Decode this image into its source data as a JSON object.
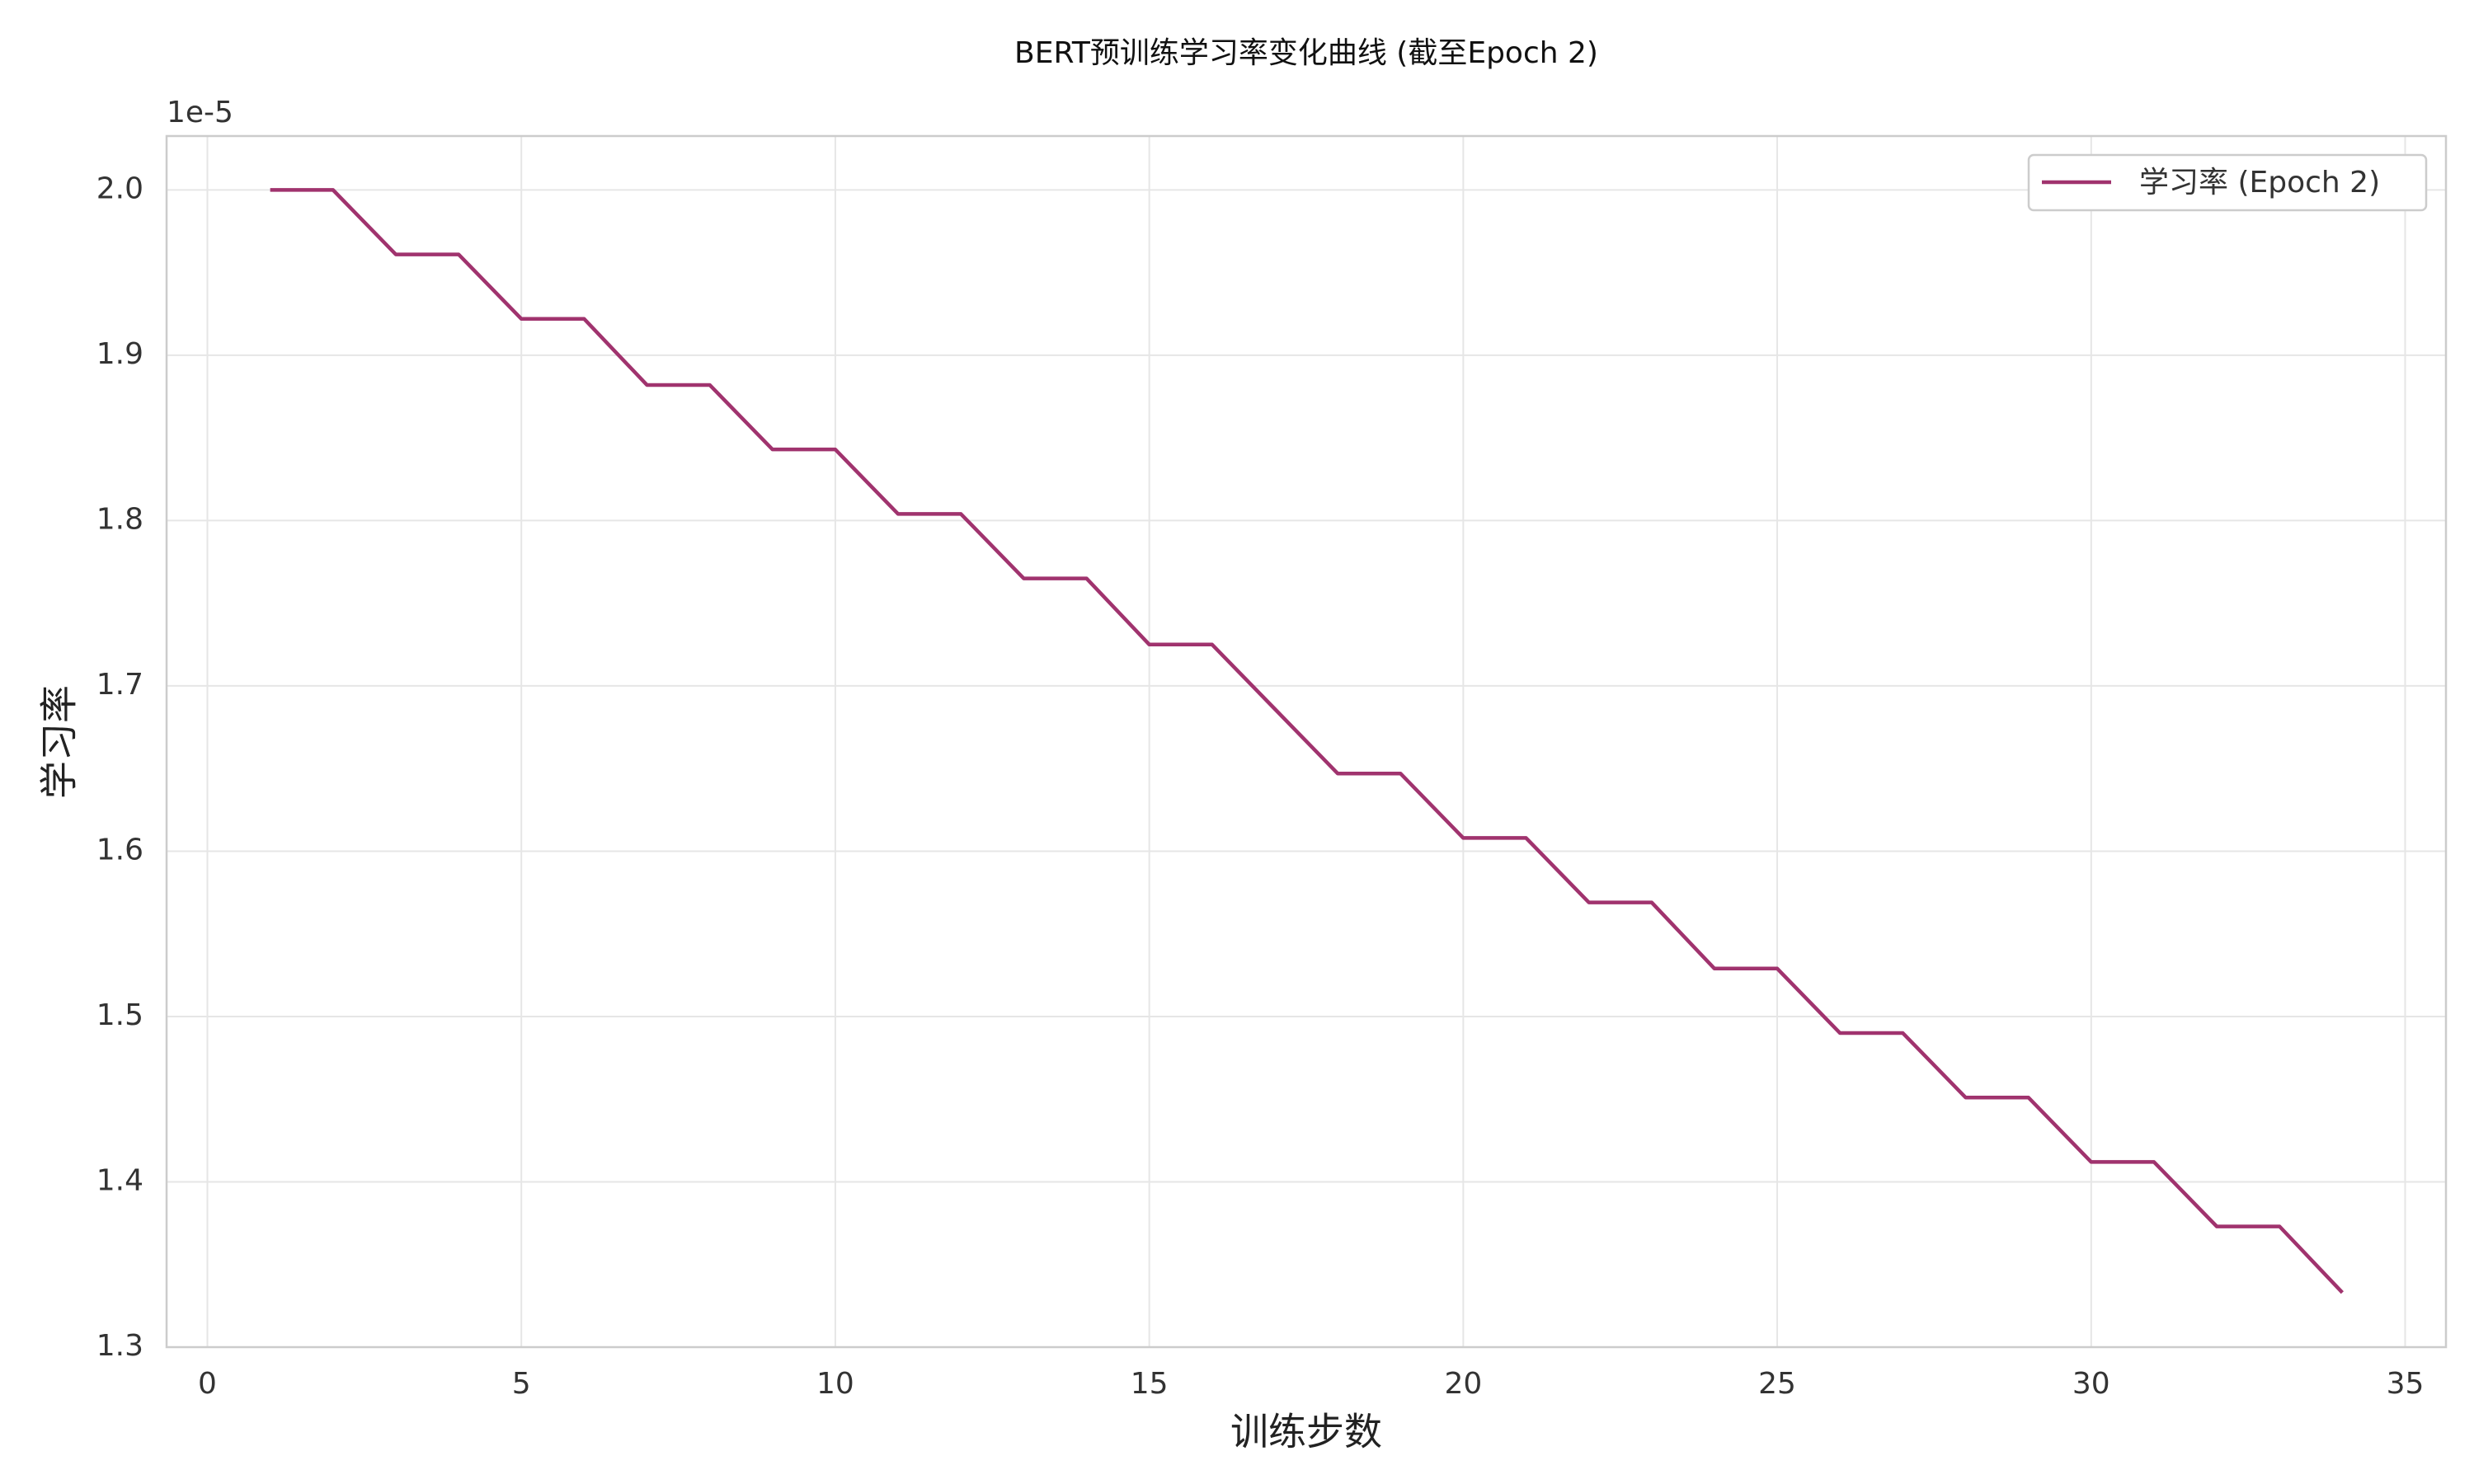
{
  "chart_data": {
    "type": "line",
    "title": "BERT预训练学习率变化曲线 (截至Epoch 2)",
    "x_label": "训练步数",
    "y_label": "学习率",
    "y_offset_label": "1e-5",
    "x": [
      1,
      2,
      3,
      4,
      5,
      6,
      7,
      8,
      9,
      10,
      11,
      12,
      13,
      14,
      15,
      16,
      17,
      18,
      19,
      20,
      21,
      22,
      23,
      24,
      25,
      26,
      27,
      28,
      29,
      30,
      31,
      32,
      33,
      34
    ],
    "series": [
      {
        "name": "学习率 (Epoch 2)",
        "color": "#a0336e",
        "values": [
          2.0,
          2.0,
          1.961,
          1.961,
          1.922,
          1.922,
          1.882,
          1.882,
          1.843,
          1.843,
          1.804,
          1.804,
          1.765,
          1.765,
          1.725,
          1.725,
          1.686,
          1.647,
          1.647,
          1.608,
          1.608,
          1.569,
          1.569,
          1.529,
          1.529,
          1.49,
          1.49,
          1.451,
          1.451,
          1.412,
          1.412,
          1.373,
          1.373,
          1.333
        ]
      }
    ],
    "xlim": [
      -0.65,
      35.65
    ],
    "xticks": [
      0,
      5,
      10,
      15,
      20,
      25,
      30,
      35
    ],
    "ylim": [
      1.3,
      2.0326
    ],
    "yticks": [
      {
        "value": 1.3,
        "label": "1.3"
      },
      {
        "value": 1.4,
        "label": "1.4"
      },
      {
        "value": 1.5,
        "label": "1.5"
      },
      {
        "value": 1.6,
        "label": "1.6"
      },
      {
        "value": 1.7,
        "label": "1.7"
      },
      {
        "value": 1.8,
        "label": "1.8"
      },
      {
        "value": 1.9,
        "label": "1.9"
      },
      {
        "value": 2.0,
        "label": "2.0"
      }
    ],
    "grid": true,
    "legend": "upper right"
  }
}
